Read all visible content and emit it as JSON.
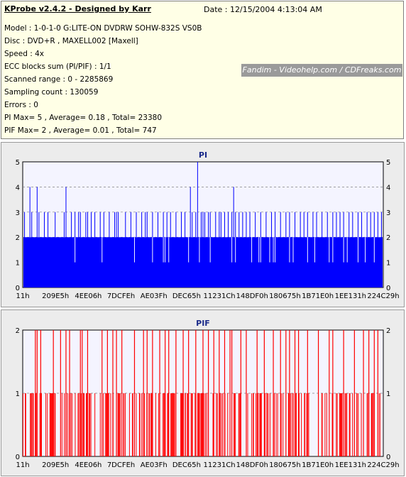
{
  "header": {
    "title": "KProbe v2.4.2 - Designed by Karr",
    "date": "Date : 12/15/2004 4:13:04 AM"
  },
  "info_lines": [
    "Model : 1-0-1-0 G:LITE-ON DVDRW SOHW-832S  VS0B",
    "Disc : DVD+R , MAXELL002 [Maxell]",
    "Speed : 4x",
    "ECC blocks sum (PI/PIF) : 1/1",
    "Scanned range : 0 - 2285869",
    "Sampling count : 130059",
    "Errors : 0",
    "PI Max= 5 , Average= 0.18 , Total= 23380",
    "PIF Max= 2 , Average= 0.01 , Total= 747"
  ],
  "watermark": "Fandim - Videohelp.com / CDFreaks.com",
  "colors": {
    "pi": "#0000ff",
    "pif": "#ff0000",
    "plot_bg": "#f4f4ff",
    "panel_bg": "#ececec",
    "grid": "#808080"
  },
  "chart_data": [
    {
      "type": "bar",
      "title": "PI",
      "ylim": [
        0,
        5
      ],
      "yticks": [
        "0",
        "1",
        "2",
        "3",
        "4",
        "5"
      ],
      "xtick_labels": [
        "11h",
        "209E5h",
        "4EE06h",
        "7DCFEh",
        "AE03Fh",
        "DEC65h",
        "11231Ch",
        "148DF0h",
        "180675h",
        "1B71E0h",
        "1EE131h",
        "224C29h"
      ],
      "baseline_value": 2,
      "description_of_spikes": "values mostly 2 with scattered 3s, a few 1s/dips, several 4s, one 5",
      "spikes": [
        [
          0.005,
          3
        ],
        [
          0.02,
          4
        ],
        [
          0.025,
          3
        ],
        [
          0.04,
          4
        ],
        [
          0.045,
          3
        ],
        [
          0.06,
          3
        ],
        [
          0.07,
          3
        ],
        [
          0.09,
          3
        ],
        [
          0.115,
          3
        ],
        [
          0.12,
          4
        ],
        [
          0.135,
          3
        ],
        [
          0.145,
          3
        ],
        [
          0.155,
          3
        ],
        [
          0.16,
          3
        ],
        [
          0.175,
          3
        ],
        [
          0.18,
          3
        ],
        [
          0.19,
          3
        ],
        [
          0.2,
          3
        ],
        [
          0.215,
          3
        ],
        [
          0.225,
          3
        ],
        [
          0.24,
          3
        ],
        [
          0.255,
          3
        ],
        [
          0.26,
          3
        ],
        [
          0.265,
          3
        ],
        [
          0.285,
          3
        ],
        [
          0.3,
          3
        ],
        [
          0.315,
          3
        ],
        [
          0.33,
          3
        ],
        [
          0.34,
          3
        ],
        [
          0.345,
          3
        ],
        [
          0.36,
          3
        ],
        [
          0.375,
          3
        ],
        [
          0.39,
          3
        ],
        [
          0.4,
          3
        ],
        [
          0.41,
          3
        ],
        [
          0.425,
          3
        ],
        [
          0.44,
          3
        ],
        [
          0.45,
          3
        ],
        [
          0.47,
          3
        ],
        [
          0.48,
          3
        ],
        [
          0.495,
          3
        ],
        [
          0.5,
          3
        ],
        [
          0.505,
          3
        ],
        [
          0.515,
          3
        ],
        [
          0.52,
          3
        ],
        [
          0.535,
          3
        ],
        [
          0.545,
          3
        ],
        [
          0.55,
          3
        ],
        [
          0.56,
          3
        ],
        [
          0.57,
          3
        ],
        [
          0.58,
          3
        ],
        [
          0.59,
          3
        ],
        [
          0.6,
          3
        ],
        [
          0.61,
          3
        ],
        [
          0.62,
          3
        ],
        [
          0.63,
          3
        ],
        [
          0.645,
          3
        ],
        [
          0.66,
          3
        ],
        [
          0.675,
          3
        ],
        [
          0.69,
          3
        ],
        [
          0.7,
          3
        ],
        [
          0.715,
          3
        ],
        [
          0.73,
          3
        ],
        [
          0.74,
          3
        ],
        [
          0.755,
          3
        ],
        [
          0.77,
          3
        ],
        [
          0.78,
          3
        ],
        [
          0.79,
          3
        ],
        [
          0.805,
          3
        ],
        [
          0.815,
          3
        ],
        [
          0.83,
          3
        ],
        [
          0.845,
          3
        ],
        [
          0.86,
          3
        ],
        [
          0.87,
          3
        ],
        [
          0.88,
          3
        ],
        [
          0.89,
          3
        ],
        [
          0.905,
          3
        ],
        [
          0.915,
          3
        ],
        [
          0.93,
          3
        ],
        [
          0.94,
          3
        ],
        [
          0.955,
          3
        ],
        [
          0.965,
          3
        ],
        [
          0.975,
          3
        ],
        [
          0.985,
          3
        ],
        [
          0.995,
          3
        ],
        [
          0.465,
          4
        ],
        [
          0.485,
          5
        ],
        [
          0.585,
          4
        ],
        [
          0.145,
          1
        ],
        [
          0.22,
          1
        ],
        [
          0.31,
          1
        ],
        [
          0.36,
          1
        ],
        [
          0.39,
          1
        ],
        [
          0.395,
          1
        ],
        [
          0.405,
          1
        ],
        [
          0.46,
          1
        ],
        [
          0.49,
          1
        ],
        [
          0.52,
          1
        ],
        [
          0.58,
          1
        ],
        [
          0.59,
          1
        ],
        [
          0.635,
          1
        ],
        [
          0.655,
          1
        ],
        [
          0.66,
          1
        ],
        [
          0.685,
          1
        ],
        [
          0.695,
          1
        ],
        [
          0.7,
          1
        ],
        [
          0.74,
          1
        ],
        [
          0.75,
          1
        ],
        [
          0.79,
          1
        ],
        [
          0.81,
          1
        ],
        [
          0.85,
          1
        ],
        [
          0.86,
          1
        ],
        [
          0.89,
          1
        ],
        [
          0.9,
          1
        ],
        [
          0.93,
          1
        ],
        [
          0.95,
          1
        ],
        [
          0.975,
          1
        ]
      ]
    },
    {
      "type": "bar",
      "title": "PIF",
      "ylim": [
        0,
        2
      ],
      "yticks": [
        "0",
        "1",
        "2"
      ],
      "xtick_labels": [
        "11h",
        "209E5h",
        "4EE06h",
        "7DCFEh",
        "AE03Fh",
        "DEC65h",
        "11231Ch",
        "148DF0h",
        "180675h",
        "1B71E0h",
        "1EE131h",
        "224C29h"
      ],
      "baseline_value": 0,
      "description_of_spikes": "many isolated spikes of value 1 and 2 across the whole range",
      "spikes_2": [
        0.035,
        0.04,
        0.05,
        0.085,
        0.105,
        0.12,
        0.13,
        0.16,
        0.165,
        0.18,
        0.22,
        0.235,
        0.25,
        0.26,
        0.275,
        0.31,
        0.335,
        0.345,
        0.36,
        0.38,
        0.395,
        0.405,
        0.425,
        0.445,
        0.46,
        0.48,
        0.5,
        0.515,
        0.53,
        0.545,
        0.56,
        0.575,
        0.58,
        0.605,
        0.62,
        0.65,
        0.67,
        0.695,
        0.715,
        0.73,
        0.74,
        0.755,
        0.765,
        0.79,
        0.82,
        0.85,
        0.86,
        0.89,
        0.92,
        0.945,
        0.96,
        0.975,
        0.985
      ],
      "spikes_1_count": 230
    }
  ]
}
